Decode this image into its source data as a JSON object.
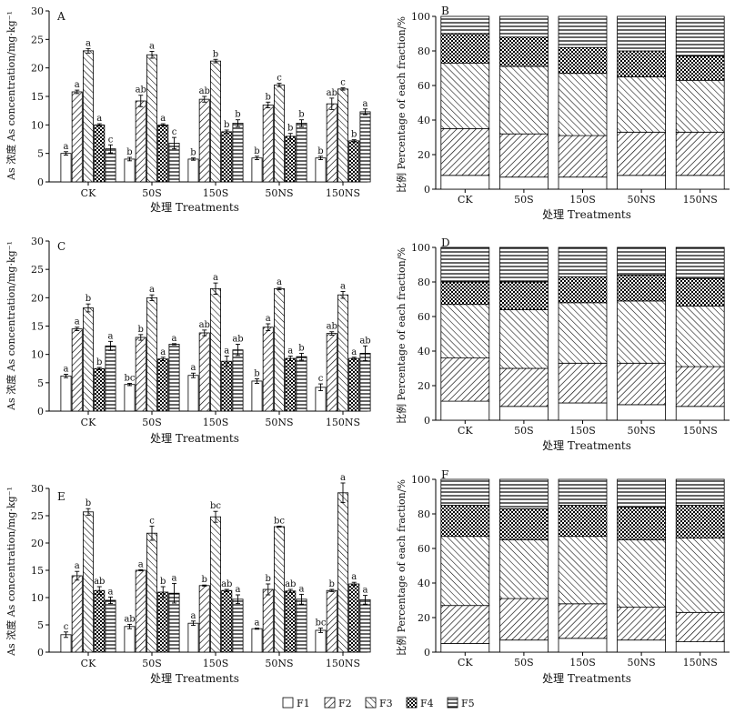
{
  "figure": {
    "x_axis_label": "处理 Treatments",
    "y_label_conc": "As 浓度 As concentration/mg·kg⁻¹",
    "y_label_pct": "比例 Percentage of each fraction/%",
    "fractions": [
      "F1",
      "F2",
      "F3",
      "F4",
      "F5"
    ],
    "colors": {
      "stroke": "#000000",
      "background": "#ffffff"
    }
  },
  "chart_data": [
    {
      "panel": "A",
      "type": "bar",
      "categories": [
        "CK",
        "50S",
        "150S",
        "50NS",
        "150NS"
      ],
      "ylim": [
        0,
        30
      ],
      "yticks": [
        0,
        5,
        10,
        15,
        20,
        25,
        30
      ],
      "series": [
        {
          "name": "F1",
          "values": [
            5.0,
            4.0,
            4.0,
            4.2,
            4.2
          ],
          "err": [
            0.3,
            0.3,
            0.2,
            0.3,
            0.3
          ],
          "sig": [
            "a",
            "b",
            "b",
            "b",
            "b"
          ]
        },
        {
          "name": "F2",
          "values": [
            15.8,
            14.2,
            14.5,
            13.5,
            13.7
          ],
          "err": [
            0.3,
            1.0,
            0.5,
            0.5,
            1.0
          ],
          "sig": [
            "a",
            "ab",
            "ab",
            "b",
            "ab"
          ]
        },
        {
          "name": "F3",
          "values": [
            23.0,
            22.3,
            21.2,
            17.0,
            16.3
          ],
          "err": [
            0.4,
            0.6,
            0.3,
            0.3,
            0.2
          ],
          "sig": [
            "a",
            "a",
            "b",
            "c",
            "c"
          ]
        },
        {
          "name": "F4",
          "values": [
            10.0,
            10.0,
            8.8,
            8.0,
            7.2
          ],
          "err": [
            0.2,
            0.2,
            0.3,
            0.5,
            0.2
          ],
          "sig": [
            "a",
            "a",
            "b",
            "b",
            "b"
          ]
        },
        {
          "name": "F5",
          "values": [
            5.8,
            6.8,
            10.3,
            10.3,
            12.3
          ],
          "err": [
            0.7,
            1.0,
            0.6,
            0.6,
            0.5
          ],
          "sig": [
            "c",
            "c",
            "b",
            "b",
            "a"
          ]
        }
      ]
    },
    {
      "panel": "B",
      "type": "bar",
      "stacked": true,
      "categories": [
        "CK",
        "50S",
        "150S",
        "50NS",
        "150NS"
      ],
      "ylim": [
        0,
        100
      ],
      "yticks": [
        0,
        20,
        40,
        60,
        80,
        100
      ],
      "series": [
        {
          "name": "F1",
          "values": [
            8,
            7,
            7,
            8,
            8
          ]
        },
        {
          "name": "F2",
          "values": [
            27,
            25,
            24,
            25,
            25
          ]
        },
        {
          "name": "F3",
          "values": [
            38,
            39,
            36,
            32,
            30
          ]
        },
        {
          "name": "F4",
          "values": [
            17,
            17,
            15,
            15,
            14
          ]
        },
        {
          "name": "F5",
          "values": [
            10,
            12,
            18,
            20,
            23
          ]
        }
      ]
    },
    {
      "panel": "C",
      "type": "bar",
      "categories": [
        "CK",
        "50S",
        "150S",
        "50NS",
        "150NS"
      ],
      "ylim": [
        0,
        30
      ],
      "yticks": [
        0,
        5,
        10,
        15,
        20,
        25,
        30
      ],
      "series": [
        {
          "name": "F1",
          "values": [
            6.2,
            4.7,
            6.3,
            5.3,
            4.2
          ],
          "err": [
            0.3,
            0.2,
            0.4,
            0.4,
            0.6
          ],
          "sig": [
            "a",
            "bc",
            "a",
            "b",
            "c"
          ]
        },
        {
          "name": "F2",
          "values": [
            14.5,
            13.0,
            13.8,
            14.8,
            13.7
          ],
          "err": [
            0.3,
            0.5,
            0.5,
            0.6,
            0.3
          ],
          "sig": [
            "a",
            "b",
            "ab",
            "a",
            "ab"
          ]
        },
        {
          "name": "F3",
          "values": [
            18.2,
            20.0,
            21.6,
            21.6,
            20.5
          ],
          "err": [
            0.7,
            0.5,
            1.0,
            0.2,
            0.6
          ],
          "sig": [
            "b",
            "a",
            "a",
            "a",
            "a"
          ]
        },
        {
          "name": "F4",
          "values": [
            7.5,
            9.2,
            8.8,
            9.3,
            9.3
          ],
          "err": [
            0.2,
            0.3,
            0.9,
            0.4,
            0.2
          ],
          "sig": [
            "b",
            "a",
            "a",
            "a",
            "a"
          ]
        },
        {
          "name": "F5",
          "values": [
            11.5,
            11.8,
            10.8,
            9.6,
            10.2
          ],
          "err": [
            0.8,
            0.1,
            1.0,
            0.6,
            1.3
          ],
          "sig": [
            "a",
            "a",
            "ab",
            "b",
            "ab"
          ]
        }
      ]
    },
    {
      "panel": "D",
      "type": "bar",
      "stacked": true,
      "categories": [
        "CK",
        "50S",
        "150S",
        "50NS",
        "150NS"
      ],
      "ylim": [
        0,
        100
      ],
      "yticks": [
        0,
        20,
        40,
        60,
        80,
        100
      ],
      "series": [
        {
          "name": "F1",
          "values": [
            11,
            8,
            10,
            9,
            8
          ]
        },
        {
          "name": "F2",
          "values": [
            25,
            22,
            23,
            24,
            23
          ]
        },
        {
          "name": "F3",
          "values": [
            31,
            34,
            35,
            36,
            35
          ]
        },
        {
          "name": "F4",
          "values": [
            13,
            16,
            15,
            15,
            16
          ]
        },
        {
          "name": "F5",
          "values": [
            20,
            20,
            17,
            16,
            18
          ]
        }
      ]
    },
    {
      "panel": "E",
      "type": "bar",
      "categories": [
        "CK",
        "50S",
        "150S",
        "50NS",
        "150NS"
      ],
      "ylim": [
        0,
        30
      ],
      "yticks": [
        0,
        5,
        10,
        15,
        20,
        25,
        30
      ],
      "series": [
        {
          "name": "F1",
          "values": [
            3.2,
            4.7,
            5.3,
            4.3,
            4.0
          ],
          "err": [
            0.5,
            0.4,
            0.4,
            0.1,
            0.4
          ],
          "sig": [
            "c",
            "ab",
            "a",
            "a",
            "bc"
          ]
        },
        {
          "name": "F2",
          "values": [
            14.0,
            15.0,
            12.2,
            11.5,
            11.3
          ],
          "err": [
            0.8,
            0.1,
            0.1,
            1.0,
            0.2
          ],
          "sig": [
            "a",
            "a",
            "b",
            "b",
            "b"
          ]
        },
        {
          "name": "F3",
          "values": [
            25.7,
            21.8,
            24.8,
            23.0,
            29.2
          ],
          "err": [
            0.6,
            1.3,
            1.0,
            0.1,
            1.8
          ],
          "sig": [
            "b",
            "c",
            "bc",
            "bc",
            "a"
          ]
        },
        {
          "name": "F4",
          "values": [
            11.3,
            11.0,
            11.3,
            11.2,
            12.5
          ],
          "err": [
            0.7,
            1.0,
            0.2,
            0.3,
            0.3
          ],
          "sig": [
            "ab",
            "b",
            "ab",
            "ab",
            "a"
          ]
        },
        {
          "name": "F5",
          "values": [
            9.5,
            10.8,
            9.7,
            9.7,
            9.6
          ],
          "err": [
            0.6,
            1.8,
            0.8,
            0.9,
            0.8
          ],
          "sig": [
            "a",
            "a",
            "a",
            "a",
            "a"
          ]
        }
      ]
    },
    {
      "panel": "F",
      "type": "bar",
      "stacked": true,
      "categories": [
        "CK",
        "50S",
        "150S",
        "50NS",
        "150NS"
      ],
      "ylim": [
        0,
        100
      ],
      "yticks": [
        0,
        20,
        40,
        60,
        80,
        100
      ],
      "series": [
        {
          "name": "F1",
          "values": [
            5,
            7,
            8,
            7,
            6
          ]
        },
        {
          "name": "F2",
          "values": [
            22,
            24,
            20,
            19,
            17
          ]
        },
        {
          "name": "F3",
          "values": [
            40,
            34,
            39,
            39,
            43
          ]
        },
        {
          "name": "F4",
          "values": [
            18,
            18,
            18,
            19,
            19
          ]
        },
        {
          "name": "F5",
          "values": [
            15,
            17,
            15,
            16,
            15
          ]
        }
      ]
    }
  ]
}
